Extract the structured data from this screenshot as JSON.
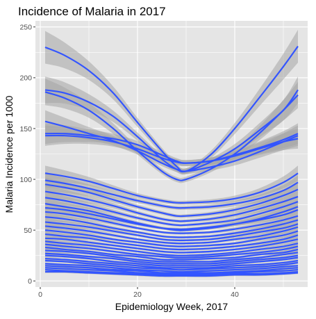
{
  "chart_data": {
    "type": "line",
    "title": "Incidence of Malaria in 2017",
    "xlabel": "Epidemiology Week, 2017",
    "ylabel": "Malaria Incidence per 1000",
    "xlim": [
      -1,
      55
    ],
    "ylim": [
      -6,
      256
    ],
    "x_ticks": [
      0,
      20,
      40
    ],
    "y_ticks": [
      0,
      50,
      100,
      150,
      200,
      250
    ],
    "x": [
      1,
      5,
      10,
      15,
      20,
      25,
      28,
      30,
      35,
      40,
      45,
      50,
      53
    ],
    "grid": true,
    "panel_background": "#e5e5e5",
    "grid_color": "#ffffff",
    "line_color": "#3355ff",
    "band_color": "#a6a6a6",
    "series": [
      {
        "values": [
          230,
          222,
          207,
          185,
          156,
          128,
          113,
          108,
          124,
          150,
          180,
          211,
          231
        ]
      },
      {
        "values": [
          188,
          185,
          176,
          162,
          142,
          120,
          110,
          108,
          117,
          130,
          148,
          168,
          188
        ]
      },
      {
        "values": [
          186,
          180,
          168,
          150,
          128,
          108,
          100,
          100,
          110,
          125,
          145,
          168,
          183
        ]
      },
      {
        "values": [
          157,
          152,
          145,
          138,
          128,
          116,
          110,
          108,
          112,
          118,
          127,
          137,
          143
        ]
      },
      {
        "values": [
          145,
          145,
          143,
          140,
          134,
          124,
          118,
          116,
          118,
          123,
          130,
          137,
          140
        ]
      },
      {
        "values": [
          143,
          143,
          141,
          137,
          130,
          121,
          117,
          116,
          118,
          124,
          131,
          139,
          145
        ]
      },
      {
        "values": [
          106,
          103,
          98,
          91,
          84,
          79,
          77,
          77,
          78,
          81,
          87,
          97,
          106
        ]
      },
      {
        "values": [
          99,
          96,
          91,
          85,
          79,
          74,
          72,
          72,
          73,
          76,
          81,
          89,
          97
        ]
      },
      {
        "values": [
          95,
          92,
          87,
          80,
          73,
          67,
          64,
          64,
          66,
          70,
          76,
          84,
          90
        ]
      },
      {
        "values": [
          88,
          85,
          80,
          74,
          67,
          61,
          59,
          59,
          61,
          65,
          71,
          78,
          83
        ]
      },
      {
        "values": [
          82,
          79,
          74,
          68,
          62,
          57,
          55,
          55,
          57,
          60,
          66,
          73,
          78
        ]
      },
      {
        "values": [
          76,
          73,
          69,
          63,
          57,
          52,
          50,
          50,
          52,
          56,
          61,
          68,
          73
        ]
      },
      {
        "values": [
          72,
          70,
          66,
          61,
          56,
          52,
          51,
          51,
          53,
          56,
          60,
          65,
          70
        ]
      },
      {
        "values": [
          68,
          66,
          62,
          57,
          52,
          48,
          47,
          47,
          48,
          51,
          55,
          60,
          64
        ]
      },
      {
        "values": [
          63,
          61,
          57,
          52,
          48,
          44,
          43,
          43,
          44,
          47,
          51,
          56,
          60
        ]
      },
      {
        "values": [
          58,
          56,
          53,
          49,
          45,
          41,
          40,
          40,
          41,
          44,
          48,
          52,
          56
        ]
      },
      {
        "values": [
          54,
          52,
          49,
          45,
          41,
          38,
          37,
          37,
          38,
          41,
          44,
          49,
          53
        ]
      },
      {
        "values": [
          50,
          48,
          45,
          41,
          38,
          35,
          34,
          34,
          35,
          37,
          41,
          45,
          49
        ]
      },
      {
        "values": [
          46,
          44,
          42,
          38,
          35,
          32,
          31,
          31,
          32,
          34,
          37,
          41,
          45
        ]
      },
      {
        "values": [
          42,
          41,
          38,
          35,
          32,
          29,
          28,
          28,
          29,
          31,
          34,
          38,
          41
        ]
      },
      {
        "values": [
          39,
          37,
          35,
          32,
          29,
          26,
          25,
          25,
          26,
          28,
          31,
          34,
          37
        ]
      },
      {
        "values": [
          36,
          34,
          32,
          29,
          26,
          24,
          23,
          23,
          24,
          26,
          28,
          31,
          34
        ]
      },
      {
        "values": [
          33,
          31,
          29,
          26,
          24,
          21,
          21,
          21,
          22,
          23,
          26,
          28,
          31
        ]
      },
      {
        "values": [
          30,
          29,
          27,
          24,
          21,
          19,
          19,
          19,
          19,
          21,
          23,
          26,
          28
        ]
      },
      {
        "values": [
          27,
          26,
          24,
          22,
          19,
          17,
          17,
          17,
          17,
          19,
          21,
          23,
          25
        ]
      },
      {
        "values": [
          25,
          24,
          22,
          19,
          17,
          15,
          15,
          15,
          15,
          17,
          19,
          21,
          23
        ]
      },
      {
        "values": [
          22,
          21,
          19,
          17,
          15,
          13,
          13,
          13,
          13,
          15,
          16,
          18,
          20
        ]
      },
      {
        "values": [
          20,
          19,
          17,
          15,
          13,
          12,
          11,
          11,
          12,
          13,
          14,
          16,
          18
        ]
      },
      {
        "values": [
          17,
          16,
          15,
          13,
          11,
          10,
          9,
          9,
          10,
          11,
          12,
          14,
          15
        ]
      },
      {
        "values": [
          15,
          14,
          13,
          11,
          10,
          8,
          8,
          8,
          8,
          9,
          10,
          12,
          13
        ]
      },
      {
        "values": [
          13,
          12,
          11,
          10,
          8,
          7,
          7,
          7,
          7,
          8,
          9,
          10,
          11
        ]
      },
      {
        "values": [
          11,
          10,
          9,
          8,
          7,
          6,
          6,
          6,
          6,
          7,
          7,
          8,
          9
        ]
      },
      {
        "values": [
          9,
          9,
          8,
          7,
          6,
          5,
          5,
          5,
          5,
          6,
          6,
          7,
          8
        ]
      }
    ]
  }
}
